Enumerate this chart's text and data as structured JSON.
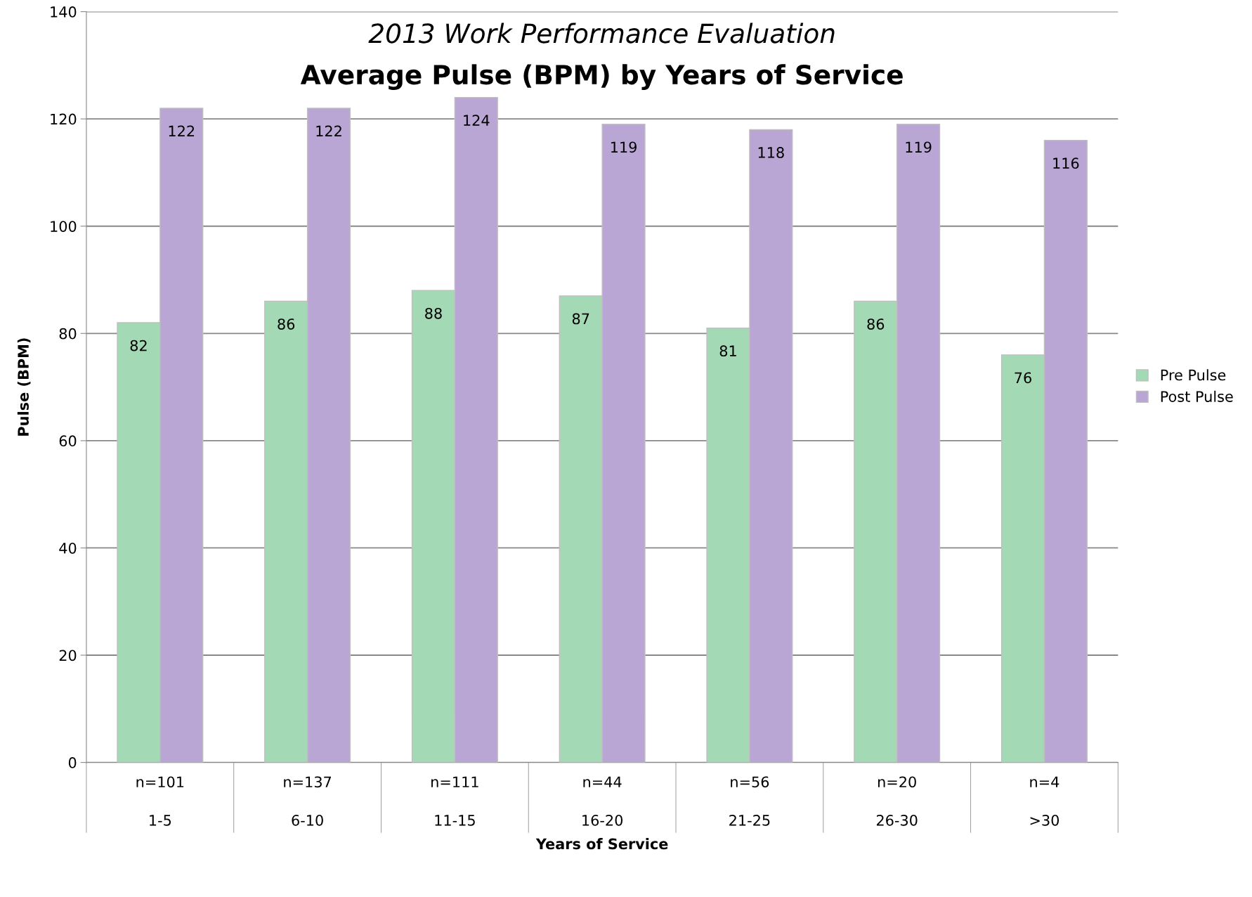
{
  "chart_data": {
    "type": "bar",
    "title": "2013 Work Performance Evaluation",
    "subtitle": "Average Pulse (BPM) by Years of Service",
    "xlabel": "Years of Service",
    "ylabel": "Pulse (BPM)",
    "categories": [
      "n=101\n\n1-5",
      "n=137\n\n6-10",
      "n=111\n\n11-15",
      "n=44\n\n16-20",
      "n=56\n\n21-25",
      "n=20\n\n26-30",
      "n=4\n\n>30"
    ],
    "series": [
      {
        "name": "Pre Pulse",
        "color": "#a3dab5",
        "values": [
          82,
          86,
          88,
          87,
          81,
          86,
          76
        ]
      },
      {
        "name": "Post Pulse",
        "color": "#b9a6d4",
        "values": [
          122,
          122,
          124,
          119,
          118,
          119,
          116
        ]
      }
    ],
    "ylim": [
      0,
      140
    ],
    "yticks": [
      0,
      20,
      40,
      60,
      80,
      100,
      120,
      140
    ],
    "grid": "y",
    "legend": "right",
    "data_labels": true
  }
}
